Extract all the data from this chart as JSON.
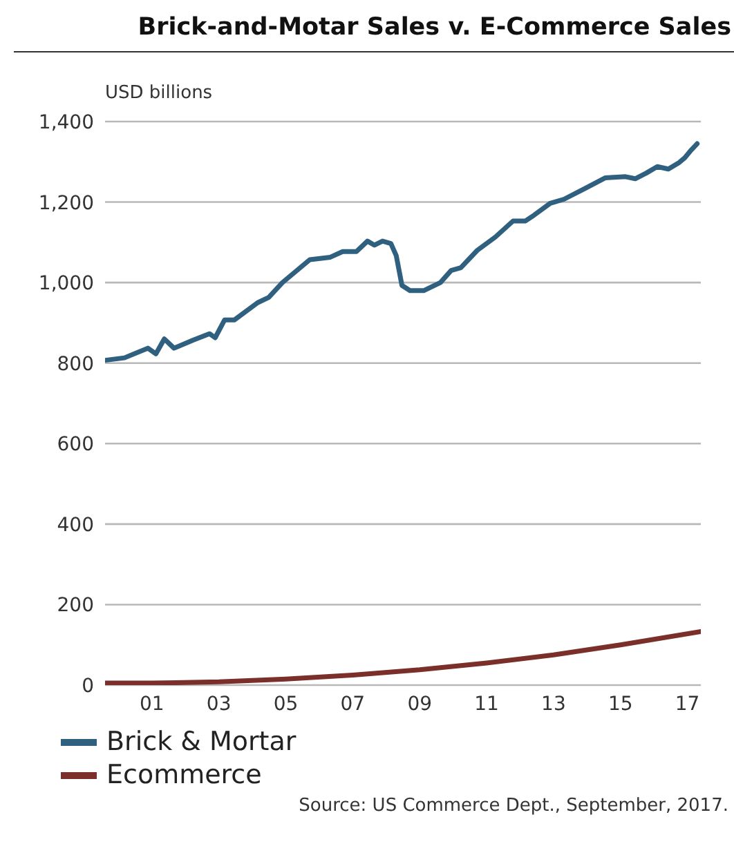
{
  "chart_data": {
    "type": "line",
    "title": "Brick-and-Motar Sales v. E-Commerce Sales",
    "ylabel": "USD billions",
    "annotations": [
      "Source: US Commerce Dept., September, 2017."
    ],
    "xlim": [
      1999.6,
      2017.4
    ],
    "xticks": [
      {
        "value": 2001,
        "label": "01"
      },
      {
        "value": 2003,
        "label": "03"
      },
      {
        "value": 2005,
        "label": "05"
      },
      {
        "value": 2007,
        "label": "07"
      },
      {
        "value": 2009,
        "label": "09"
      },
      {
        "value": 2011,
        "label": "11"
      },
      {
        "value": 2013,
        "label": "13"
      },
      {
        "value": 2015,
        "label": "15"
      },
      {
        "value": 2017,
        "label": "17"
      }
    ],
    "ylim": [
      0,
      1400
    ],
    "yticks": [
      0,
      200,
      400,
      600,
      800,
      {
        "value": 1000,
        "label": "1,000"
      },
      {
        "value": 1200,
        "label": "1,200"
      },
      {
        "value": 1400,
        "label": "1,400"
      }
    ],
    "grid": "y",
    "legend": "bottom",
    "marker": "none",
    "line_style": "solid",
    "series": [
      {
        "name": "Brick & Mortar",
        "color": "#2f6080",
        "x": [
          1999.61,
          2000.18,
          2000.88,
          2001.12,
          2001.37,
          2001.66,
          2002.23,
          2002.72,
          2002.89,
          2003.17,
          2003.46,
          2004.16,
          2004.49,
          2004.9,
          2005.72,
          2006.33,
          2006.7,
          2007.11,
          2007.44,
          2007.65,
          2007.89,
          2008.14,
          2008.3,
          2008.47,
          2008.71,
          2009.12,
          2009.62,
          2009.94,
          2010.23,
          2010.72,
          2011.26,
          2011.79,
          2012.16,
          2012.41,
          2012.9,
          2013.31,
          2013.92,
          2014.54,
          2015.15,
          2015.44,
          2015.77,
          2016.1,
          2016.43,
          2016.75,
          2016.92,
          2017.12,
          2017.29
        ],
        "values": [
          807,
          813,
          837,
          823,
          860,
          837,
          857,
          873,
          863,
          907,
          907,
          950,
          963,
          1000,
          1057,
          1063,
          1077,
          1077,
          1103,
          1093,
          1103,
          1097,
          1067,
          993,
          980,
          980,
          1000,
          1030,
          1037,
          1080,
          1113,
          1153,
          1153,
          1167,
          1197,
          1207,
          1233,
          1260,
          1263,
          1258,
          1272,
          1288,
          1282,
          1298,
          1310,
          1330,
          1345
        ]
      },
      {
        "name": "Ecommerce",
        "color": "#7b2f2a",
        "x": [
          1999.6,
          2001,
          2003,
          2005,
          2007,
          2009,
          2011,
          2013,
          2015,
          2017.4
        ],
        "values": [
          5,
          5,
          8,
          15,
          25,
          38,
          55,
          75,
          100,
          133
        ]
      }
    ]
  }
}
